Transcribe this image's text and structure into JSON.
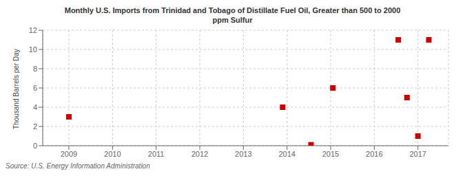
{
  "chart_data": {
    "type": "scatter",
    "title": "Monthly U.S. Imports from Trinidad and Tobago of Distillate Fuel Oil, Greater than 500 to 2000\nppm Sulfur",
    "ylabel": "Thousand Barrels per Day",
    "source": "Source: U.S. Energy Information Administration",
    "x": [
      2009.0,
      2013.9,
      2014.55,
      2015.05,
      2016.55,
      2016.75,
      2017.0,
      2017.25
    ],
    "values": [
      3.0,
      4.0,
      0.1,
      6.0,
      11.0,
      5.0,
      1.0,
      11.0
    ],
    "color": "#cc0000",
    "marker": "square",
    "xlim": [
      2008.4,
      2017.7
    ],
    "ylim": [
      0,
      12
    ],
    "xticks": [
      2009,
      2010,
      2011,
      2012,
      2013,
      2014,
      2015,
      2016,
      2017
    ],
    "yticks": [
      0,
      2,
      4,
      6,
      8,
      10,
      12
    ],
    "grid": true
  }
}
